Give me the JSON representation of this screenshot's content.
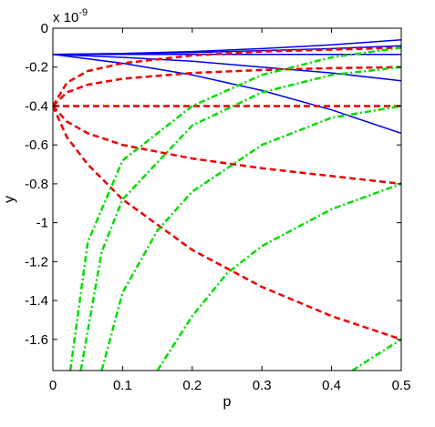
{
  "chart_data": {
    "type": "line",
    "xlabel": "p",
    "ylabel": "y",
    "xlim": [
      0,
      0.5
    ],
    "ylim": [
      -1.76,
      0
    ],
    "y_multiplier_label": "x 10",
    "y_multiplier_exponent": "-9",
    "x_ticks": [
      0,
      0.1,
      0.2,
      0.3,
      0.4,
      0.5
    ],
    "x_tick_labels": [
      "0",
      "0.1",
      "0.2",
      "0.3",
      "0.4",
      "0.5"
    ],
    "y_ticks": [
      0,
      -0.2,
      -0.4,
      -0.6,
      -0.8,
      -1,
      -1.2,
      -1.4,
      -1.6
    ],
    "y_tick_labels": [
      "0",
      "-0.2",
      "-0.4",
      "-0.6",
      "-0.8",
      "-1",
      "-1.2",
      "-1.4",
      "-1.6"
    ],
    "grid": false,
    "series": [
      {
        "style": "solid",
        "color": "#0000ee",
        "x": [
          0,
          0.1,
          0.2,
          0.3,
          0.4,
          0.5
        ],
        "y": [
          -0.135,
          -0.13,
          -0.12,
          -0.105,
          -0.085,
          -0.06
        ]
      },
      {
        "style": "solid",
        "color": "#0000ee",
        "x": [
          0,
          0.1,
          0.2,
          0.3,
          0.4,
          0.5
        ],
        "y": [
          -0.135,
          -0.13,
          -0.125,
          -0.115,
          -0.105,
          -0.09
        ]
      },
      {
        "style": "solid",
        "color": "#0000ee",
        "x": [
          0,
          0.1,
          0.2,
          0.3,
          0.4,
          0.5
        ],
        "y": [
          -0.135,
          -0.135,
          -0.135,
          -0.135,
          -0.135,
          -0.135
        ]
      },
      {
        "style": "solid",
        "color": "#0000ee",
        "x": [
          0,
          0.1,
          0.2,
          0.3,
          0.4,
          0.5
        ],
        "y": [
          -0.135,
          -0.15,
          -0.17,
          -0.2,
          -0.23,
          -0.27
        ]
      },
      {
        "style": "solid",
        "color": "#0000ee",
        "x": [
          0,
          0.1,
          0.2,
          0.3,
          0.4,
          0.5
        ],
        "y": [
          -0.135,
          -0.18,
          -0.24,
          -0.32,
          -0.42,
          -0.54
        ]
      },
      {
        "style": "dashed",
        "color": "#ee0000",
        "x": [
          0,
          0.02,
          0.05,
          0.1,
          0.2,
          0.3,
          0.4,
          0.5
        ],
        "y": [
          -0.4,
          -0.28,
          -0.22,
          -0.18,
          -0.14,
          -0.12,
          -0.11,
          -0.1
        ]
      },
      {
        "style": "dashed",
        "color": "#ee0000",
        "x": [
          0,
          0.02,
          0.05,
          0.1,
          0.2,
          0.3,
          0.4,
          0.5
        ],
        "y": [
          -0.4,
          -0.33,
          -0.29,
          -0.26,
          -0.23,
          -0.215,
          -0.205,
          -0.2
        ]
      },
      {
        "style": "dashed",
        "color": "#ee0000",
        "x": [
          0,
          0.1,
          0.2,
          0.3,
          0.4,
          0.5
        ],
        "y": [
          -0.4,
          -0.4,
          -0.4,
          -0.4,
          -0.4,
          -0.4
        ]
      },
      {
        "style": "dashed",
        "color": "#ee0000",
        "x": [
          0,
          0.02,
          0.05,
          0.1,
          0.2,
          0.3,
          0.4,
          0.5
        ],
        "y": [
          -0.4,
          -0.48,
          -0.54,
          -0.6,
          -0.67,
          -0.72,
          -0.76,
          -0.8
        ]
      },
      {
        "style": "dashed",
        "color": "#ee0000",
        "x": [
          0,
          0.02,
          0.05,
          0.1,
          0.2,
          0.3,
          0.4,
          0.5
        ],
        "y": [
          -0.4,
          -0.56,
          -0.7,
          -0.88,
          -1.14,
          -1.33,
          -1.48,
          -1.6
        ]
      },
      {
        "style": "dashdot",
        "color": "#00dd00",
        "x": [
          0.025,
          0.05,
          0.1,
          0.2,
          0.3,
          0.4,
          0.5
        ],
        "y": [
          -1.76,
          -1.1,
          -0.68,
          -0.4,
          -0.24,
          -0.15,
          -0.1
        ]
      },
      {
        "style": "dashdot",
        "color": "#00dd00",
        "x": [
          0.04,
          0.07,
          0.1,
          0.2,
          0.3,
          0.4,
          0.5
        ],
        "y": [
          -1.76,
          -1.15,
          -0.88,
          -0.5,
          -0.33,
          -0.24,
          -0.2
        ]
      },
      {
        "style": "dashdot",
        "color": "#00dd00",
        "x": [
          0.07,
          0.1,
          0.15,
          0.2,
          0.3,
          0.4,
          0.5
        ],
        "y": [
          -1.76,
          -1.36,
          -1.04,
          -0.84,
          -0.6,
          -0.46,
          -0.4
        ]
      },
      {
        "style": "dashdot",
        "color": "#00dd00",
        "x": [
          0.15,
          0.2,
          0.25,
          0.3,
          0.4,
          0.5
        ],
        "y": [
          -1.76,
          -1.48,
          -1.26,
          -1.12,
          -0.93,
          -0.8
        ]
      },
      {
        "style": "dashdot",
        "color": "#00dd00",
        "x": [
          0.43,
          0.46,
          0.5
        ],
        "y": [
          -1.76,
          -1.69,
          -1.6
        ]
      }
    ]
  }
}
